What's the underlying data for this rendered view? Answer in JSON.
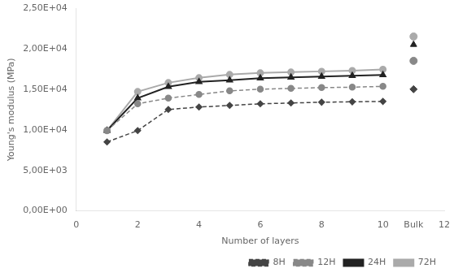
{
  "chart_data": {
    "type": "line",
    "x": [
      1,
      2,
      3,
      4,
      5,
      6,
      7,
      8,
      9,
      10
    ],
    "bulk_x": 11,
    "series": [
      {
        "name": "8H",
        "color": "#444444",
        "line_style": "dashed",
        "marker": "diamond",
        "values": [
          8500,
          9900,
          12500,
          12800,
          13000,
          13200,
          13300,
          13400,
          13450,
          13500
        ],
        "bulk": 15000
      },
      {
        "name": "12H",
        "color": "#888888",
        "line_style": "dashed",
        "marker": "circle",
        "values": [
          9900,
          13200,
          13900,
          14350,
          14800,
          15000,
          15100,
          15200,
          15250,
          15350
        ],
        "bulk": 18500
      },
      {
        "name": "24H",
        "color": "#222222",
        "line_style": "solid",
        "marker": "triangle",
        "values": [
          9900,
          13900,
          15300,
          15900,
          16100,
          16350,
          16450,
          16550,
          16650,
          16750
        ],
        "bulk": 20500
      },
      {
        "name": "72H",
        "color": "#aaaaaa",
        "line_style": "solid",
        "marker": "circle",
        "values": [
          9900,
          14700,
          15800,
          16400,
          16800,
          17000,
          17100,
          17200,
          17300,
          17450
        ],
        "bulk": 21500
      }
    ],
    "xlabel": "Number of layers",
    "ylabel": "Young's modulus (MPa)",
    "xlim": [
      0,
      12
    ],
    "xticks": [
      0,
      2,
      4,
      6,
      8,
      10,
      {
        "value": 11,
        "label": "Bulk"
      },
      12
    ],
    "ylim": [
      0,
      25000
    ],
    "yticks": [
      {
        "value": 0,
        "label": "0,00E+00"
      },
      {
        "value": 5000,
        "label": "5,00E+03"
      },
      {
        "value": 10000,
        "label": "1,00E+04"
      },
      {
        "value": 15000,
        "label": "1,50E+04"
      },
      {
        "value": 20000,
        "label": "2,00E+04"
      },
      {
        "value": 25000,
        "label": "2,50E+04"
      }
    ],
    "grid": false,
    "legend": "lower right"
  }
}
